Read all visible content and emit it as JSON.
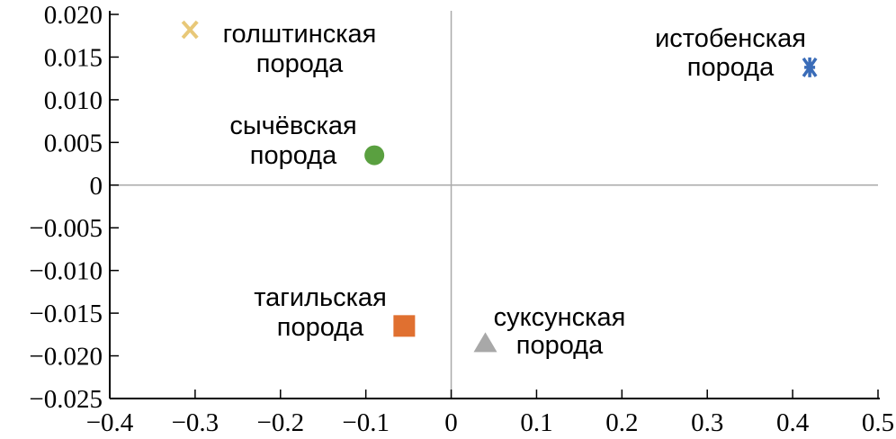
{
  "chart_data": {
    "type": "scatter",
    "title": "",
    "xlabel": "",
    "ylabel": "",
    "xlim": [
      -0.4,
      0.5
    ],
    "ylim": [
      -0.025,
      0.02
    ],
    "grid": false,
    "legend": "none",
    "zero_lines": true,
    "x_ticks": [
      -0.4,
      -0.3,
      -0.2,
      -0.1,
      0,
      0.1,
      0.2,
      0.3,
      0.4,
      0.5
    ],
    "x_tick_labels": [
      "−0.4",
      "−0.3",
      "−0.2",
      "−0.1",
      "0",
      "0.1",
      "0.2",
      "0.3",
      "0.4",
      "0.5"
    ],
    "y_ticks": [
      0.02,
      0.015,
      0.01,
      0.005,
      0,
      -0.005,
      -0.01,
      -0.015,
      -0.02,
      -0.025
    ],
    "y_tick_labels": [
      "0.020",
      "0.015",
      "0.010",
      "0.005",
      "0",
      "−0.005",
      "−0.010",
      "−0.015",
      "−0.020",
      "−0.025"
    ],
    "points": [
      {
        "label_lines": [
          "голштинская",
          "порода"
        ],
        "x": -0.306,
        "y": 0.0182,
        "marker": "x",
        "color": "#e8c878",
        "label_side": "right"
      },
      {
        "label_lines": [
          "истобенская",
          "порода"
        ],
        "x": 0.42,
        "y": 0.0138,
        "marker": "asterisk",
        "color": "#3a6cb8",
        "label_side": "left"
      },
      {
        "label_lines": [
          "сычёвская",
          "порода"
        ],
        "x": -0.09,
        "y": 0.0035,
        "marker": "circle",
        "color": "#5aa040",
        "label_side": "left"
      },
      {
        "label_lines": [
          "тагильская",
          "порода"
        ],
        "x": -0.055,
        "y": -0.0165,
        "marker": "square",
        "color": "#e07030",
        "label_side": "left"
      },
      {
        "label_lines": [
          "суксунская",
          "порода"
        ],
        "x": 0.04,
        "y": -0.0185,
        "marker": "triangle",
        "color": "#a8a8a8",
        "label_side": "right"
      }
    ]
  }
}
